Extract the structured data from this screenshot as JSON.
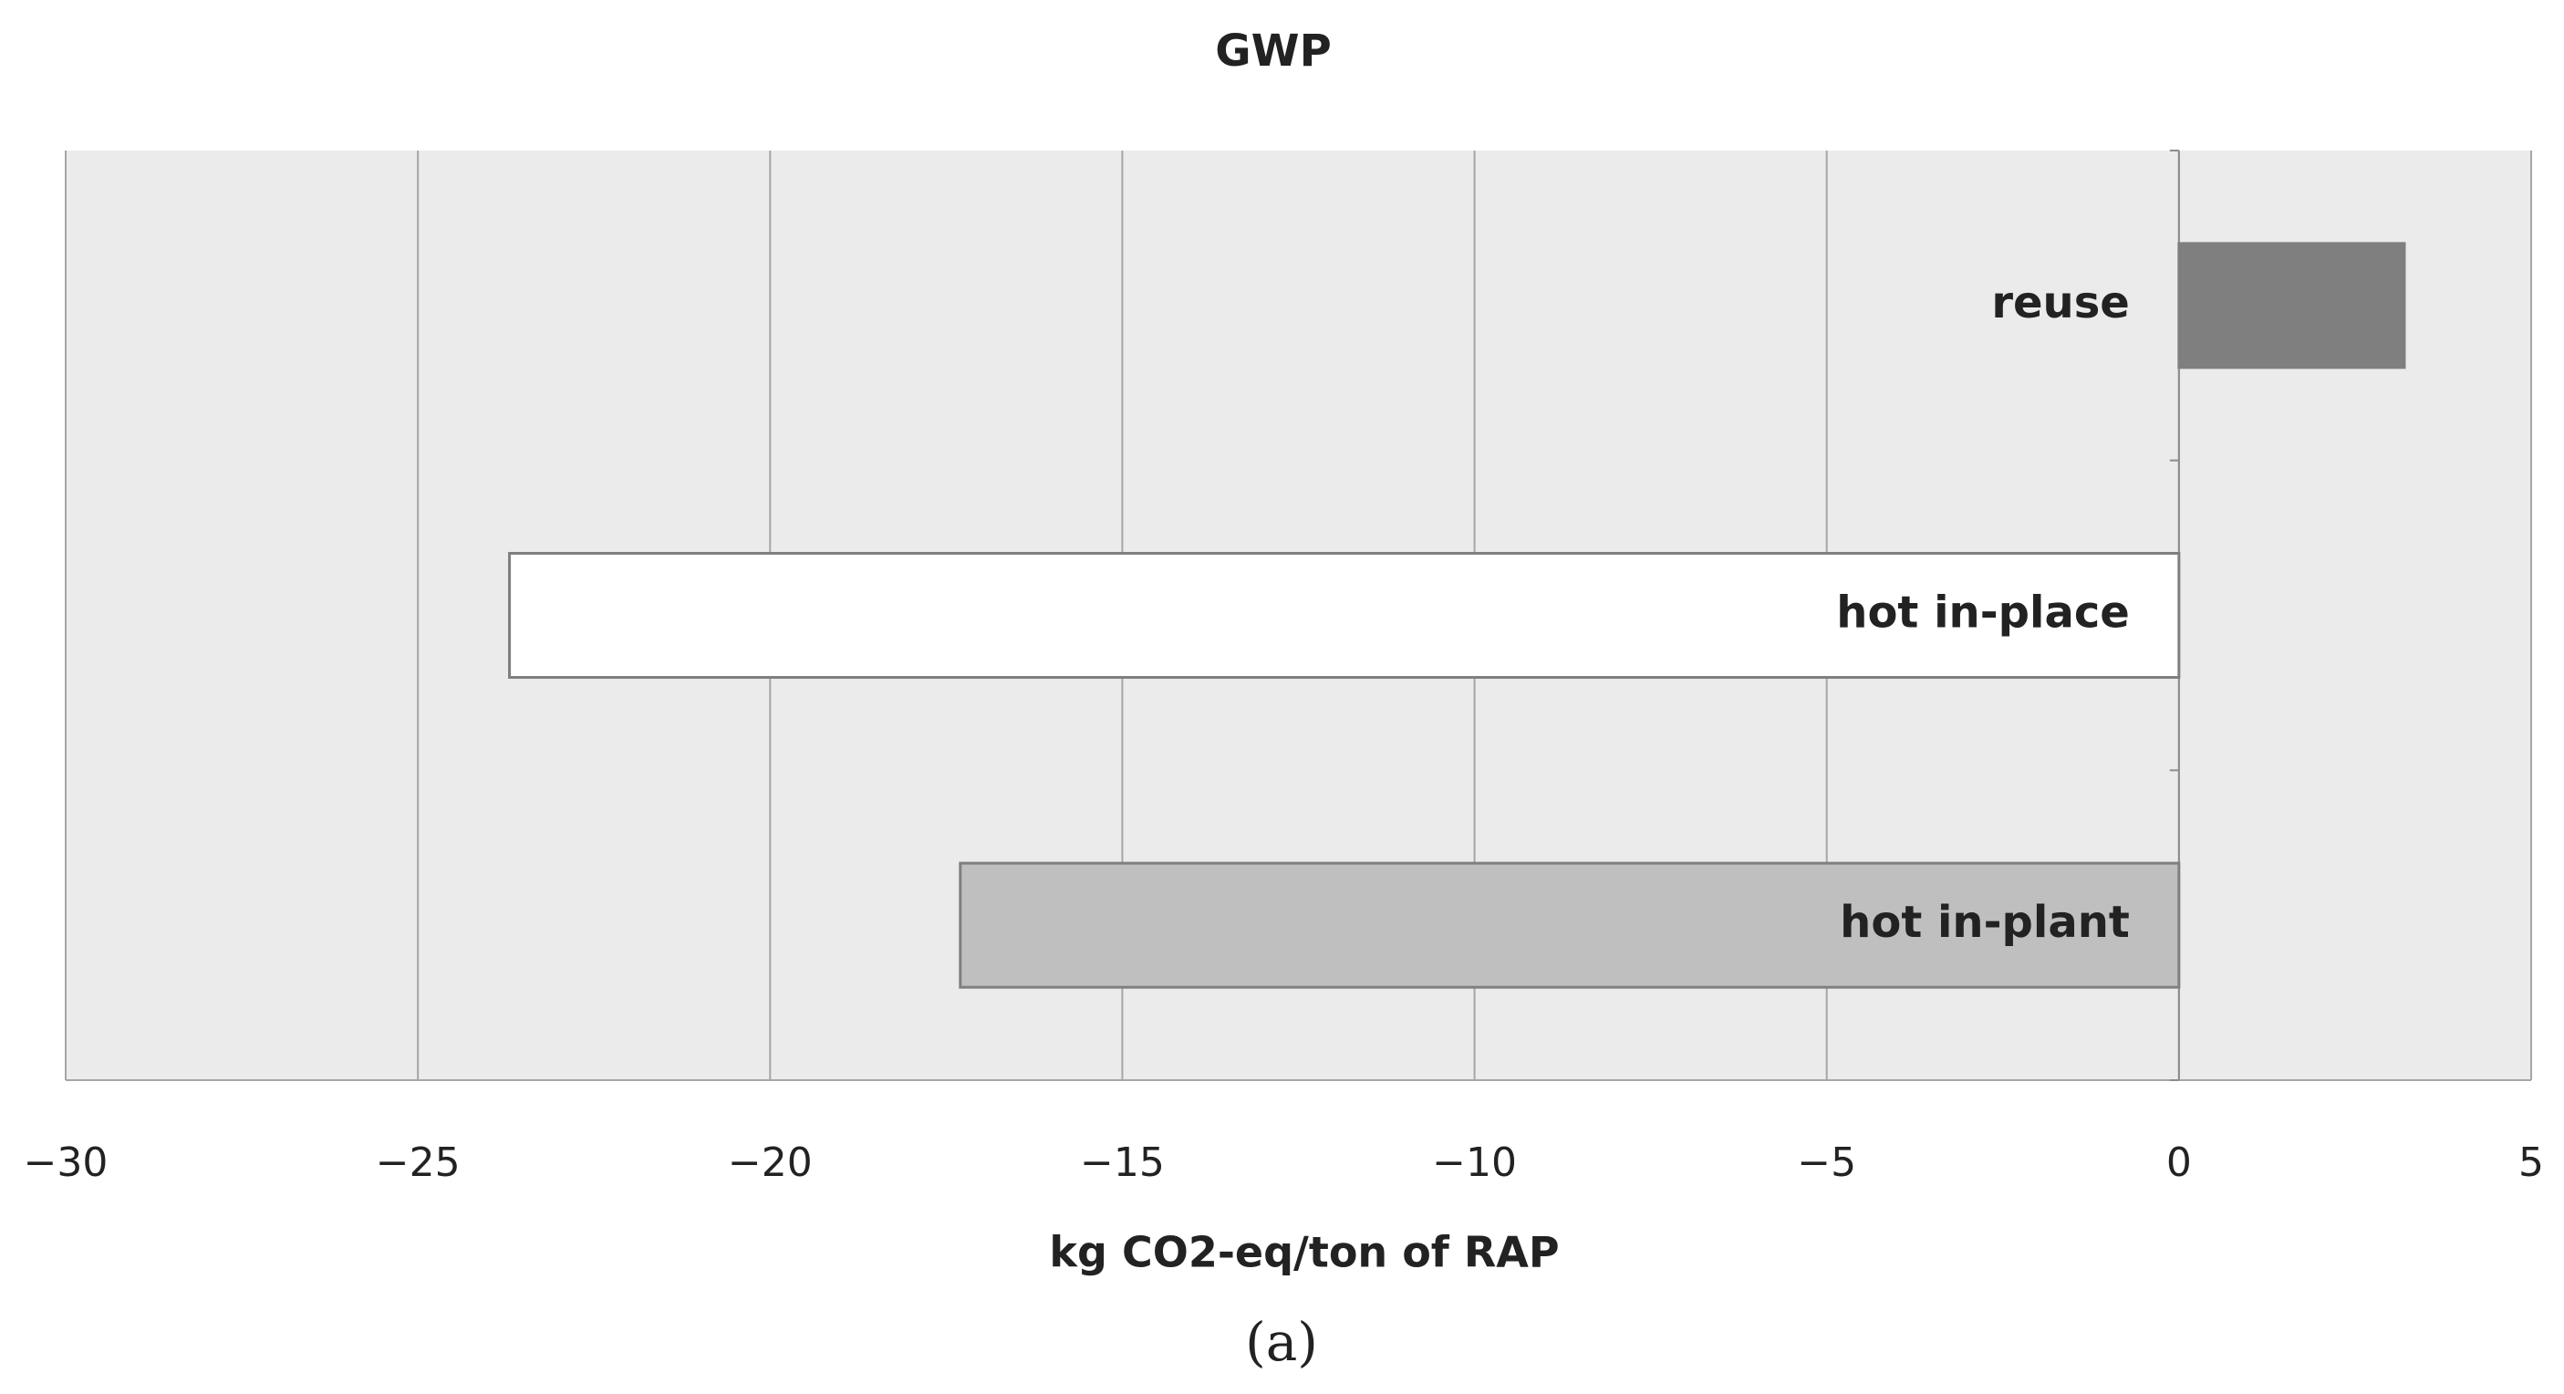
{
  "chart_data": {
    "type": "hbar",
    "title": "GWP",
    "categories": [
      "reuse",
      "hot in-place",
      "hot in-plant"
    ],
    "values": [
      3.2,
      -23.7,
      -17.3
    ],
    "colors": [
      "#7f7f7f",
      "#ffffff",
      "#bfbfbf"
    ],
    "x_label": "kg CO2-eq/ton of RAP",
    "xlim": [
      -30,
      5
    ],
    "xticks": [
      {
        "value": -30,
        "label": "−30"
      },
      {
        "value": -25,
        "label": "−25"
      },
      {
        "value": -20,
        "label": "−20"
      },
      {
        "value": -15,
        "label": "−15"
      },
      {
        "value": -10,
        "label": "−10"
      },
      {
        "value": -5,
        "label": "−5"
      },
      0,
      5
    ],
    "grid": true
  },
  "caption": "(a)"
}
